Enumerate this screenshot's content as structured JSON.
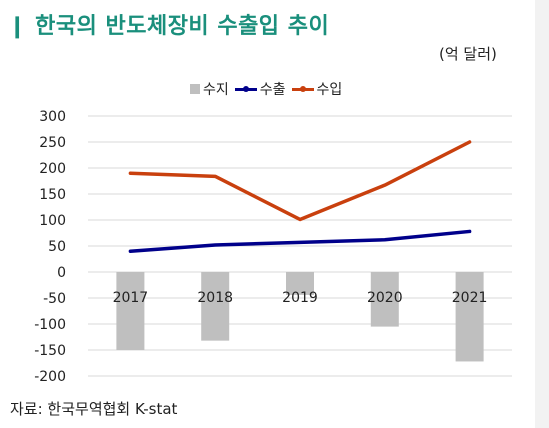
{
  "title": "❙ 한국의 반도체장비 수출입 추이",
  "unit": "(억 달러)",
  "source": "자료: 한국무역협회 K-stat",
  "colors": {
    "title": "#1a8f7c",
    "balance": "#bfbfbf",
    "export": "#00008b",
    "import": "#c9400e",
    "grid": "#d9d9d9"
  },
  "chart_data": {
    "type": "bar",
    "categories": [
      "2017",
      "2018",
      "2019",
      "2020",
      "2021"
    ],
    "ylim": [
      -200,
      300
    ],
    "yticks": [
      "300",
      "250",
      "200",
      "150",
      "100",
      "50",
      "0",
      "-50",
      "-100",
      "-150",
      "-200"
    ],
    "grid": true,
    "legend_position": "top",
    "series": [
      {
        "name": "수지",
        "type": "bar",
        "values": [
          -150,
          -132,
          -44,
          -105,
          -172
        ]
      },
      {
        "name": "수출",
        "type": "line",
        "values": [
          40,
          52,
          57,
          62,
          78
        ]
      },
      {
        "name": "수입",
        "type": "line",
        "values": [
          190,
          184,
          101,
          167,
          250
        ]
      }
    ]
  }
}
